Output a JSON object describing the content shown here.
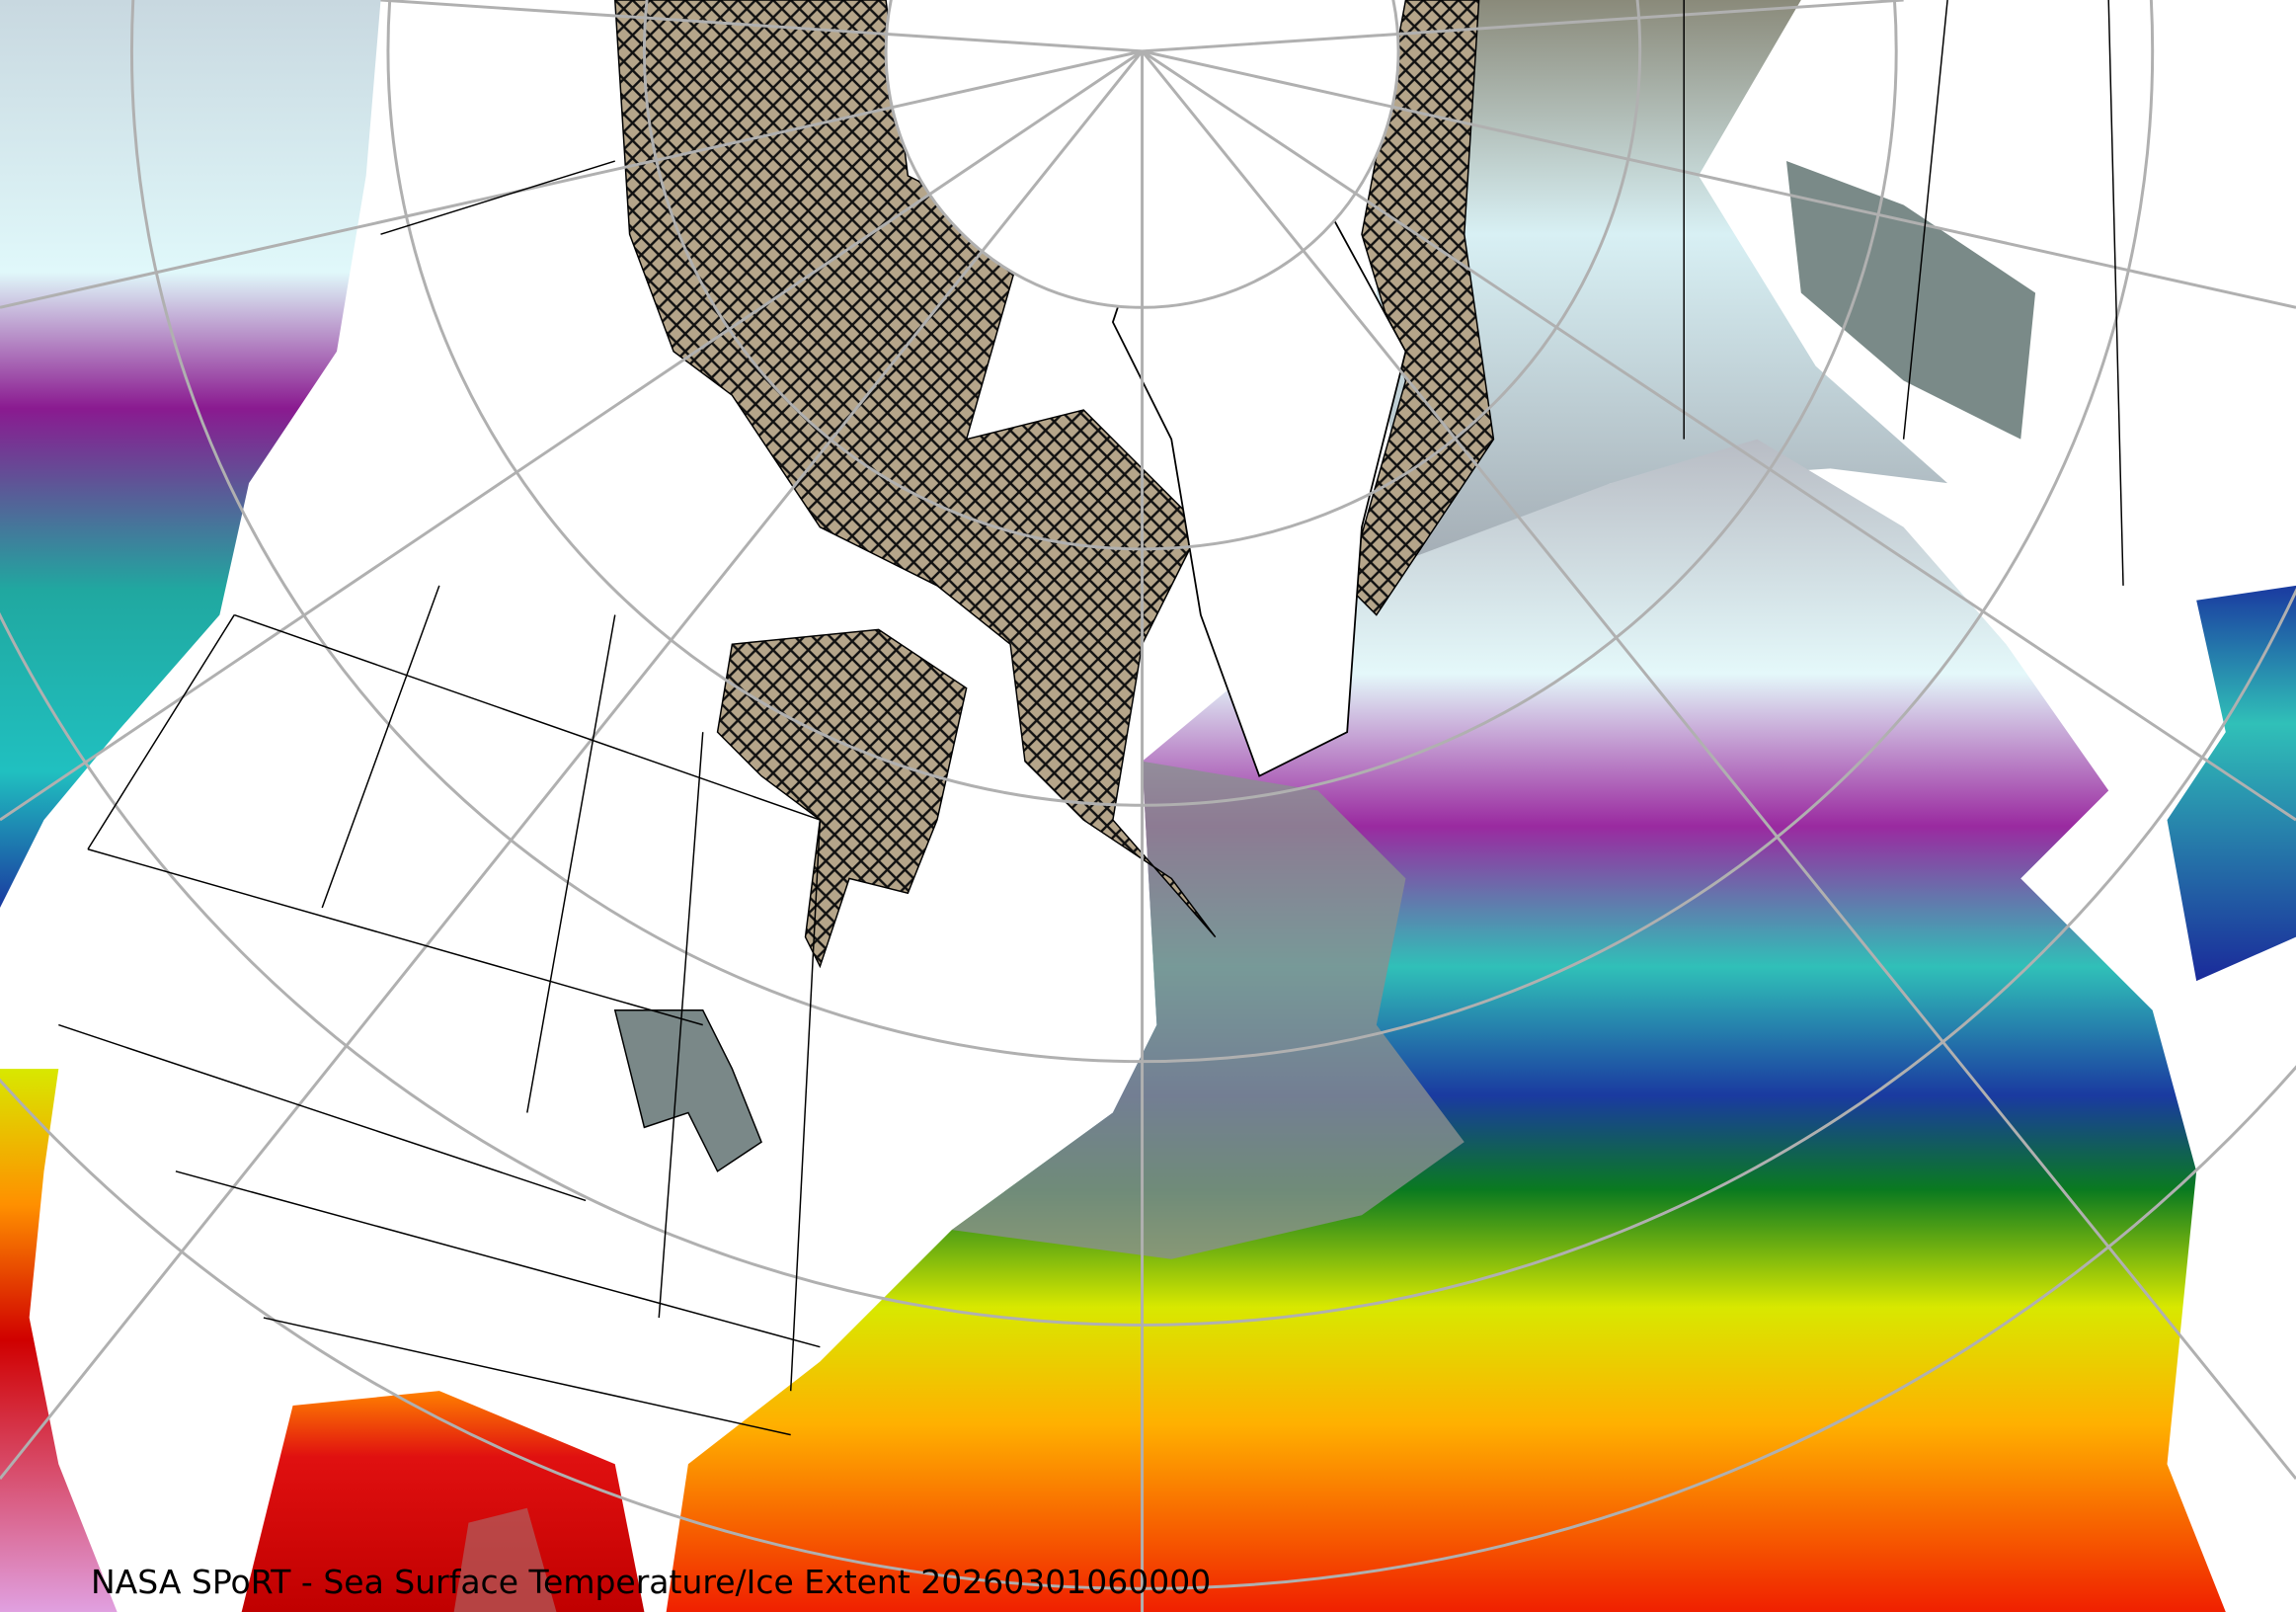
{
  "caption": "NASA SPoRT - Sea Surface Temperature/Ice Extent 20260301060000",
  "map": {
    "projection": "polar stereographic (north pole)",
    "region": "North America / North Atlantic",
    "layers": [
      "sea-surface-temperature",
      "sea-ice-extent",
      "coastlines",
      "state-borders",
      "graticule"
    ],
    "colors": {
      "land": "#ffffff",
      "ice_hatch_fill": "#b5a58a",
      "graticule": "#b0b0b0",
      "sst_scale_cold_to_warm": [
        "#e8ffff",
        "#a8a8b0",
        "#8a1a90",
        "#2ab8b0",
        "#1a2a9a",
        "#0a7a10",
        "#d8e800",
        "#ffc000",
        "#ff4000",
        "#d00000"
      ]
    }
  }
}
